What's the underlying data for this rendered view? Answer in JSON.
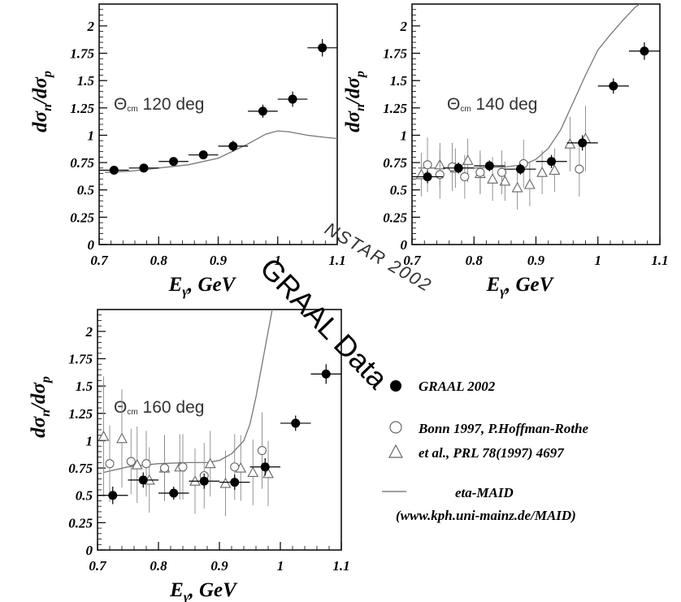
{
  "chart_data": [
    {
      "type": "scatter",
      "annotation_main": "Θ",
      "annotation_sub": "cm",
      "annotation_value": "120 deg",
      "xlabel_main": "E",
      "xlabel_sub": "γ",
      "xlabel_rest": ", GeV",
      "ylabel_d1": "dσ",
      "ylabel_n": "n",
      "ylabel_slash": "/dσ",
      "ylabel_p": "p",
      "xlim": [
        0.7,
        1.1
      ],
      "ylim": [
        0,
        2.2
      ],
      "xticks": [
        "0.7",
        "0.8",
        "0.9",
        "1",
        "1.1"
      ],
      "xtick_values": [
        0.7,
        0.8,
        0.9,
        1.0,
        1.1
      ],
      "yticks": [
        "0",
        "0.25",
        "0.5",
        "0.75",
        "1",
        "1.25",
        "1.5",
        "1.75",
        "2"
      ],
      "ytick_values": [
        0,
        0.25,
        0.5,
        0.75,
        1.0,
        1.25,
        1.5,
        1.75,
        2.0
      ],
      "series": [
        {
          "name": "GRAAL 2002",
          "marker": "filled-circle",
          "x": [
            0.725,
            0.775,
            0.825,
            0.875,
            0.925,
            0.975,
            1.025,
            1.075
          ],
          "y": [
            0.68,
            0.7,
            0.76,
            0.82,
            0.9,
            1.22,
            1.33,
            1.8
          ],
          "xerr": [
            0.025,
            0.025,
            0.025,
            0.025,
            0.025,
            0.025,
            0.025,
            0.025
          ],
          "yerr": [
            0.03,
            0.03,
            0.03,
            0.04,
            0.05,
            0.06,
            0.07,
            0.08
          ]
        },
        {
          "name": "eta-MAID",
          "marker": "line",
          "x": [
            0.71,
            0.75,
            0.8,
            0.85,
            0.9,
            0.95,
            0.98,
            1.0,
            1.02,
            1.05,
            1.08,
            1.1
          ],
          "y": [
            0.66,
            0.67,
            0.7,
            0.73,
            0.79,
            0.92,
            1.01,
            1.04,
            1.03,
            1.0,
            0.98,
            0.97
          ]
        }
      ]
    },
    {
      "type": "scatter",
      "annotation_main": "Θ",
      "annotation_sub": "cm",
      "annotation_value": "140 deg",
      "xlabel_main": "E",
      "xlabel_sub": "γ",
      "xlabel_rest": ", GeV",
      "ylabel_d1": "dσ",
      "ylabel_n": "n",
      "ylabel_slash": "/dσ",
      "ylabel_p": "p",
      "xlim": [
        0.7,
        1.1
      ],
      "ylim": [
        0,
        2.2
      ],
      "xticks": [
        "0.7",
        "0.8",
        "0.9",
        "1",
        "1.1"
      ],
      "xtick_values": [
        0.7,
        0.8,
        0.9,
        1.0,
        1.1
      ],
      "yticks": [
        "0",
        "0.25",
        "0.5",
        "0.75",
        "1",
        "1.25",
        "1.5",
        "1.75",
        "2"
      ],
      "ytick_values": [
        0,
        0.25,
        0.5,
        0.75,
        1.0,
        1.25,
        1.5,
        1.75,
        2.0
      ],
      "series": [
        {
          "name": "GRAAL 2002",
          "marker": "filled-circle",
          "x": [
            0.725,
            0.775,
            0.825,
            0.875,
            0.925,
            0.975,
            1.025,
            1.075
          ],
          "y": [
            0.62,
            0.7,
            0.72,
            0.69,
            0.76,
            0.93,
            1.45,
            1.77
          ],
          "xerr": [
            0.025,
            0.025,
            0.025,
            0.025,
            0.025,
            0.025,
            0.025,
            0.025
          ],
          "yerr": [
            0.06,
            0.05,
            0.05,
            0.05,
            0.06,
            0.07,
            0.07,
            0.08
          ]
        },
        {
          "name": "Bonn 1997, P.Hoffman-Rothe",
          "marker": "open-circle",
          "x": [
            0.725,
            0.745,
            0.765,
            0.785,
            0.81,
            0.845,
            0.88,
            0.97
          ],
          "y": [
            0.73,
            0.64,
            0.71,
            0.62,
            0.66,
            0.66,
            0.74,
            0.69
          ],
          "yerr": [
            0.25,
            0.22,
            0.22,
            0.2,
            0.2,
            0.2,
            0.22,
            0.25
          ]
        },
        {
          "name": "et al., PRL 78(1997) 4697",
          "marker": "open-triangle",
          "x": [
            0.715,
            0.745,
            0.77,
            0.79,
            0.81,
            0.83,
            0.85,
            0.87,
            0.89,
            0.91,
            0.93,
            0.955,
            0.98
          ],
          "y": [
            0.64,
            0.73,
            0.7,
            0.77,
            0.65,
            0.6,
            0.58,
            0.52,
            0.55,
            0.66,
            0.68,
            0.92,
            0.97
          ],
          "yerr": [
            0.2,
            0.2,
            0.18,
            0.2,
            0.18,
            0.2,
            0.18,
            0.2,
            0.2,
            0.2,
            0.2,
            0.25,
            0.3
          ]
        },
        {
          "name": "eta-MAID",
          "marker": "line",
          "x": [
            0.71,
            0.75,
            0.8,
            0.85,
            0.88,
            0.9,
            0.92,
            0.94,
            0.96,
            0.98,
            1.0,
            1.02,
            1.04,
            1.06,
            1.08
          ],
          "y": [
            0.7,
            0.7,
            0.7,
            0.71,
            0.73,
            0.78,
            0.88,
            1.05,
            1.3,
            1.55,
            1.78,
            1.92,
            2.05,
            2.17,
            2.25
          ]
        }
      ]
    },
    {
      "type": "scatter",
      "annotation_main": "Θ",
      "annotation_sub": "cm",
      "annotation_value": "160 deg",
      "xlabel_main": "E",
      "xlabel_sub": "γ",
      "xlabel_rest": ", GeV",
      "ylabel_d1": "dσ",
      "ylabel_n": "n",
      "ylabel_slash": "/dσ",
      "ylabel_p": "p",
      "xlim": [
        0.7,
        1.1
      ],
      "ylim": [
        0,
        2.2
      ],
      "xticks": [
        "0.7",
        "0.8",
        "0.9",
        "1",
        "1.1"
      ],
      "xtick_values": [
        0.7,
        0.8,
        0.9,
        1.0,
        1.1
      ],
      "yticks": [
        "0",
        "0.25",
        "0.5",
        "0.75",
        "1",
        "1.25",
        "1.5",
        "1.75",
        "2"
      ],
      "ytick_values": [
        0,
        0.25,
        0.5,
        0.75,
        1.0,
        1.25,
        1.5,
        1.75,
        2.0
      ],
      "series": [
        {
          "name": "GRAAL 2002",
          "marker": "filled-circle",
          "x": [
            0.725,
            0.775,
            0.825,
            0.875,
            0.925,
            0.975,
            1.025,
            1.075
          ],
          "y": [
            0.5,
            0.64,
            0.52,
            0.63,
            0.62,
            0.76,
            1.16,
            1.61
          ],
          "xerr": [
            0.025,
            0.025,
            0.025,
            0.025,
            0.025,
            0.025,
            0.025,
            0.025
          ],
          "yerr": [
            0.08,
            0.07,
            0.06,
            0.07,
            0.07,
            0.08,
            0.07,
            0.09
          ]
        },
        {
          "name": "Bonn 1997, P.Hoffman-Rothe",
          "marker": "open-circle",
          "x": [
            0.72,
            0.755,
            0.78,
            0.81,
            0.84,
            0.875,
            0.925,
            0.97
          ],
          "y": [
            0.79,
            0.81,
            0.79,
            0.75,
            0.76,
            0.68,
            0.76,
            0.91
          ],
          "yerr": [
            0.35,
            0.3,
            0.3,
            0.3,
            0.3,
            0.3,
            0.3,
            0.35
          ]
        },
        {
          "name": "et al., PRL 78(1997) 4697",
          "marker": "open-triangle",
          "x": [
            0.71,
            0.74,
            0.765,
            0.785,
            0.81,
            0.835,
            0.86,
            0.885,
            0.91,
            0.935,
            0.955,
            0.98
          ],
          "y": [
            1.04,
            1.02,
            0.78,
            0.64,
            0.75,
            0.76,
            0.63,
            0.79,
            0.61,
            0.75,
            0.71,
            0.7
          ],
          "yerr": [
            0.55,
            0.45,
            0.35,
            0.3,
            0.3,
            0.3,
            0.3,
            0.3,
            0.3,
            0.3,
            0.3,
            0.3
          ]
        },
        {
          "name": "eta-MAID",
          "marker": "line",
          "x": [
            0.71,
            0.75,
            0.8,
            0.85,
            0.88,
            0.9,
            0.92,
            0.94,
            0.95,
            0.96,
            0.97,
            0.98,
            0.99
          ],
          "y": [
            0.71,
            0.76,
            0.79,
            0.8,
            0.8,
            0.82,
            0.88,
            1.0,
            1.15,
            1.4,
            1.7,
            2.0,
            2.3
          ]
        }
      ]
    }
  ],
  "legend": {
    "items": [
      {
        "marker": "filled-circle",
        "text": "GRAAL 2002"
      },
      {
        "marker": "open-circle",
        "text": "Bonn 1997, P.Hoffman-Rothe"
      },
      {
        "marker": "open-triangle",
        "text": "et al., PRL 78(1997) 4697"
      },
      {
        "marker": "line",
        "text": "eta-MAID"
      },
      {
        "marker": "none",
        "text": "(www.kph.uni-mainz.de/MAID)"
      }
    ]
  },
  "watermark": {
    "conference": "NSTAR 2002",
    "main": "GRAAL Data"
  }
}
